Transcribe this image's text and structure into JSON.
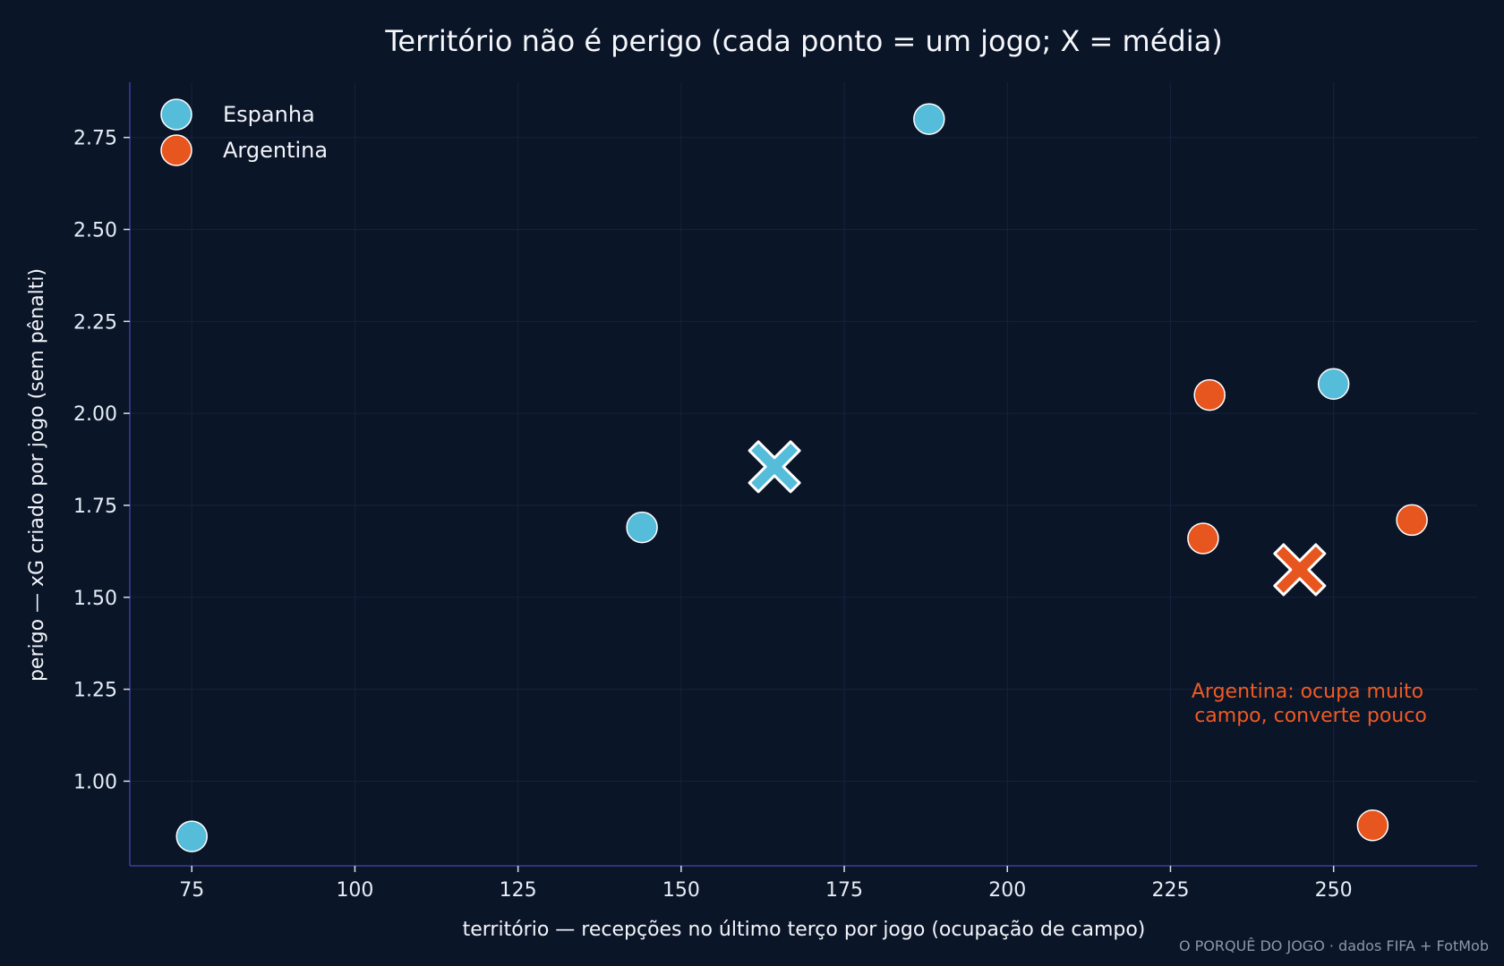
{
  "chart_data": {
    "type": "scatter",
    "title": "Território não é perigo (cada ponto = um jogo; X = média)",
    "xlabel": "território — recepções no último terço por jogo (ocupação de campo)",
    "ylabel": "perigo — xG criado por jogo (sem pênalti)",
    "xlim": [
      65.5,
      272
    ],
    "ylim": [
      0.77,
      2.9
    ],
    "xticks": [
      75,
      100,
      125,
      150,
      175,
      200,
      225,
      250
    ],
    "yticks": [
      1.0,
      1.25,
      1.5,
      1.75,
      2.0,
      2.25,
      2.5,
      2.75
    ],
    "xtick_labels": [
      "75",
      "100",
      "125",
      "150",
      "175",
      "200",
      "225",
      "250"
    ],
    "ytick_labels": [
      "1.00",
      "1.25",
      "1.50",
      "1.75",
      "2.00",
      "2.25",
      "2.50",
      "2.75"
    ],
    "grid": true,
    "legend_position": "top-left",
    "series": [
      {
        "name": "Espanha",
        "color": "#55bcd9",
        "points": [
          {
            "x": 75,
            "y": 0.85
          },
          {
            "x": 144,
            "y": 1.69
          },
          {
            "x": 188,
            "y": 2.8
          },
          {
            "x": 250,
            "y": 2.08
          }
        ],
        "mean": {
          "x": 164.3,
          "y": 1.855
        }
      },
      {
        "name": "Argentina",
        "color": "#e8561f",
        "points": [
          {
            "x": 230,
            "y": 1.66
          },
          {
            "x": 231,
            "y": 2.05
          },
          {
            "x": 256,
            "y": 0.88
          },
          {
            "x": 262,
            "y": 1.71
          }
        ],
        "mean": {
          "x": 244.8,
          "y": 1.575
        }
      }
    ],
    "annotations": [
      {
        "lines": [
          "Argentina: ocupa muito",
          "campo, converte pouco"
        ],
        "color": "#f05a22"
      }
    ],
    "source": "O PORQUÊ DO JOGO · dados FIFA + FotMob"
  }
}
